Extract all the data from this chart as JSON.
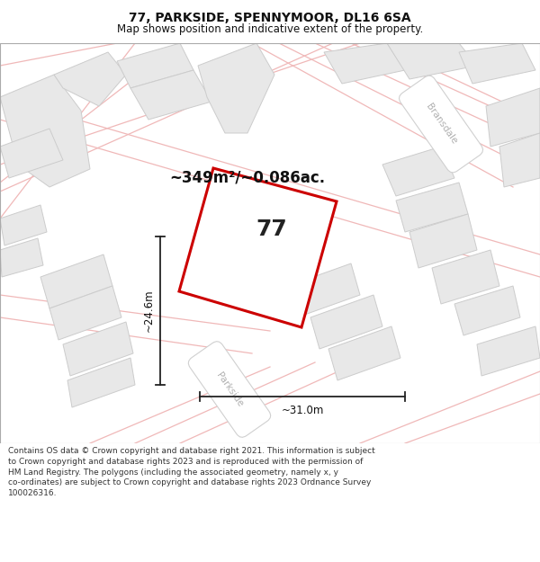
{
  "title": "77, PARKSIDE, SPENNYMOOR, DL16 6SA",
  "subtitle": "Map shows position and indicative extent of the property.",
  "footer": "Contains OS data © Crown copyright and database right 2021. This information is subject to Crown copyright and database rights 2023 and is reproduced with the permission of HM Land Registry. The polygons (including the associated geometry, namely x, y co-ordinates) are subject to Crown copyright and database rights 2023 Ordnance Survey 100026316.",
  "area_label": "~349m²/~0.086ac.",
  "width_label": "~31.0m",
  "height_label": "~24.6m",
  "property_number": "77",
  "map_bg": "#f5f5f5",
  "block_color": "#e8e8e8",
  "block_edge_color": "#cccccc",
  "road_line_color": "#f0b8b8",
  "property_outline_color": "#cc0000",
  "property_fill_color": "#ffffff",
  "dim_line_color": "#222222",
  "street_label_color": "#b0b0b0",
  "title_fontsize": 10,
  "subtitle_fontsize": 8.5,
  "footer_fontsize": 6.5
}
